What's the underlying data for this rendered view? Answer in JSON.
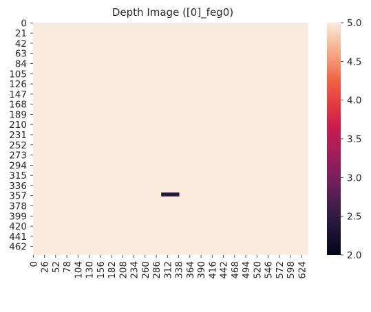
{
  "chart_data": {
    "type": "heatmap",
    "title": "Depth Image ([0]_feg0)",
    "xlabel": "",
    "ylabel": "",
    "image_shape": {
      "rows": 480,
      "cols": 640
    },
    "x_tick_labels": [
      "0",
      "26",
      "52",
      "78",
      "104",
      "130",
      "156",
      "182",
      "208",
      "234",
      "260",
      "286",
      "312",
      "338",
      "364",
      "390",
      "416",
      "442",
      "468",
      "494",
      "520",
      "546",
      "572",
      "598",
      "624"
    ],
    "y_tick_labels": [
      "0",
      "21",
      "42",
      "63",
      "84",
      "105",
      "126",
      "147",
      "168",
      "189",
      "210",
      "231",
      "252",
      "273",
      "294",
      "315",
      "336",
      "357",
      "378",
      "399",
      "420",
      "441",
      "462"
    ],
    "background_value": 5.0,
    "regions": [
      {
        "row_range": [
          351,
          359
        ],
        "col_range": [
          298,
          340
        ],
        "value": 2.4
      }
    ],
    "colorbar": {
      "colormap": "rocket",
      "vmin": 2.0,
      "vmax": 5.0,
      "tick_labels": [
        "2.0",
        "2.5",
        "3.0",
        "3.5",
        "4.0",
        "4.5",
        "5.0"
      ]
    },
    "grid": false
  }
}
